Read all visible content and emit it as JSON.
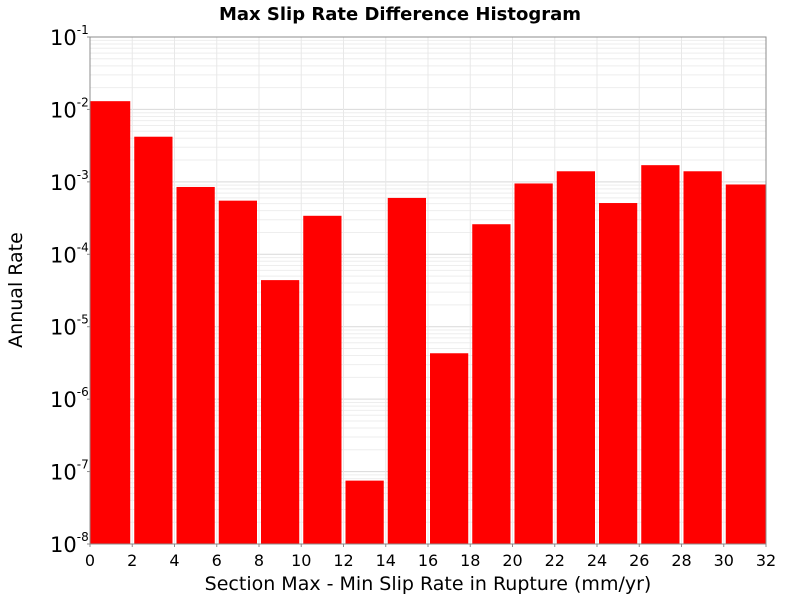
{
  "chart_data": {
    "type": "bar",
    "title": "Max Slip Rate Difference Histogram",
    "xlabel": "Section Max - Min Slip Rate in Rupture (mm/yr)",
    "ylabel": "Annual Rate",
    "y_scale": "log",
    "ylim": [
      1e-08,
      0.1
    ],
    "xlim": [
      0,
      32
    ],
    "grid": true,
    "bar_color": "#ff0000",
    "bin_width": 2,
    "x_ticks": [
      "0",
      "2",
      "4",
      "6",
      "8",
      "10",
      "12",
      "14",
      "16",
      "18",
      "20",
      "22",
      "24",
      "26",
      "28",
      "30",
      "32"
    ],
    "y_ticks": [
      {
        "base": "10",
        "exp": "-8"
      },
      {
        "base": "10",
        "exp": "-7"
      },
      {
        "base": "10",
        "exp": "-6"
      },
      {
        "base": "10",
        "exp": "-5"
      },
      {
        "base": "10",
        "exp": "-4"
      },
      {
        "base": "10",
        "exp": "-3"
      },
      {
        "base": "10",
        "exp": "-2"
      },
      {
        "base": "10",
        "exp": "-1"
      }
    ],
    "bins": [
      {
        "x0": 0,
        "x1": 2,
        "value": 0.013
      },
      {
        "x0": 2,
        "x1": 4,
        "value": 0.0042
      },
      {
        "x0": 4,
        "x1": 6,
        "value": 0.00085
      },
      {
        "x0": 6,
        "x1": 8,
        "value": 0.00055
      },
      {
        "x0": 8,
        "x1": 10,
        "value": 4.4e-05
      },
      {
        "x0": 10,
        "x1": 12,
        "value": 0.00034
      },
      {
        "x0": 12,
        "x1": 14,
        "value": 7.5e-08
      },
      {
        "x0": 14,
        "x1": 16,
        "value": 0.0006
      },
      {
        "x0": 16,
        "x1": 18,
        "value": 4.3e-06
      },
      {
        "x0": 18,
        "x1": 20,
        "value": 0.00026
      },
      {
        "x0": 20,
        "x1": 22,
        "value": 0.00095
      },
      {
        "x0": 22,
        "x1": 24,
        "value": 0.0014
      },
      {
        "x0": 24,
        "x1": 26,
        "value": 0.00051
      },
      {
        "x0": 26,
        "x1": 28,
        "value": 0.0017
      },
      {
        "x0": 28,
        "x1": 30,
        "value": 0.0014
      },
      {
        "x0": 30,
        "x1": 32,
        "value": 0.00092
      }
    ]
  }
}
